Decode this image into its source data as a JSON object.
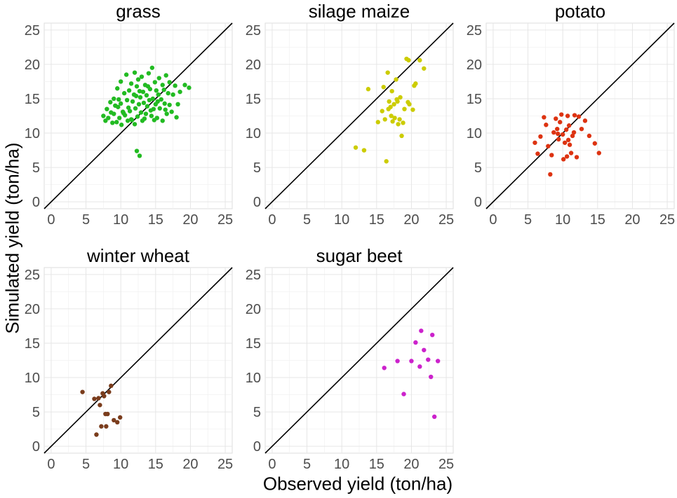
{
  "figure": {
    "xlabel": "Observed yield (ton/ha)",
    "ylabel": "Simulated yield (ton/ha)"
  },
  "chart_data": [
    {
      "type": "scatter",
      "title": "grass",
      "color": "#22bb22",
      "xlim": [
        -1,
        26
      ],
      "ylim": [
        -1,
        26
      ],
      "xticks": [
        0,
        5,
        10,
        15,
        20,
        25
      ],
      "yticks": [
        0,
        5,
        10,
        15,
        20,
        25
      ],
      "identity_line": true,
      "points": [
        [
          7.5,
          12.5
        ],
        [
          7.8,
          11.8
        ],
        [
          8,
          13.5
        ],
        [
          8.2,
          12.2
        ],
        [
          8.5,
          14.5
        ],
        [
          8.6,
          13
        ],
        [
          8.8,
          11.5
        ],
        [
          9,
          15
        ],
        [
          9,
          12.8
        ],
        [
          9.2,
          14
        ],
        [
          9.4,
          11.6
        ],
        [
          9.5,
          16.5
        ],
        [
          9.6,
          13.8
        ],
        [
          9.8,
          12.2
        ],
        [
          10,
          17.5
        ],
        [
          10,
          14.3
        ],
        [
          10.1,
          11.2
        ],
        [
          10.3,
          13.1
        ],
        [
          10.5,
          15.8
        ],
        [
          10.6,
          12.6
        ],
        [
          10.8,
          18.5
        ],
        [
          10.9,
          14.8
        ],
        [
          11,
          11.8
        ],
        [
          11.2,
          16.2
        ],
        [
          11.3,
          13.2
        ],
        [
          11.5,
          17.2
        ],
        [
          11.5,
          12
        ],
        [
          11.7,
          14.6
        ],
        [
          11.9,
          15.6
        ],
        [
          12,
          18.8
        ],
        [
          12,
          11.3
        ],
        [
          12.1,
          13.6
        ],
        [
          12.3,
          16.8
        ],
        [
          12.4,
          12.4
        ],
        [
          12.5,
          17.8
        ],
        [
          12.6,
          14.2
        ],
        [
          12.8,
          15.2
        ],
        [
          12.9,
          13
        ],
        [
          13,
          18.2
        ],
        [
          13.1,
          11.8
        ],
        [
          13.2,
          16
        ],
        [
          13.3,
          14.4
        ],
        [
          13.5,
          17
        ],
        [
          13.6,
          12.8
        ],
        [
          13.7,
          15.5
        ],
        [
          13.8,
          13.9
        ],
        [
          14,
          18.7
        ],
        [
          14.1,
          14.8
        ],
        [
          14.2,
          16.4
        ],
        [
          14.4,
          12.5
        ],
        [
          14.5,
          19.5
        ],
        [
          14.6,
          15
        ],
        [
          14.7,
          13.5
        ],
        [
          14.9,
          17.4
        ],
        [
          15,
          14.2
        ],
        [
          15.1,
          16.2
        ],
        [
          15.2,
          12.2
        ],
        [
          15.4,
          15.6
        ],
        [
          15.5,
          18
        ],
        [
          15.6,
          13.6
        ],
        [
          15.8,
          14.9
        ],
        [
          16,
          17
        ],
        [
          16,
          11.8
        ],
        [
          16.2,
          16.3
        ],
        [
          16.3,
          14.3
        ],
        [
          16.5,
          18.4
        ],
        [
          16.6,
          12.8
        ],
        [
          16.8,
          15.8
        ],
        [
          17,
          14.1
        ],
        [
          17,
          17.4
        ],
        [
          17.3,
          13.1
        ],
        [
          17.5,
          15.6
        ],
        [
          17.8,
          16.9
        ],
        [
          18,
          12.3
        ],
        [
          18.2,
          14.2
        ],
        [
          18.5,
          16
        ],
        [
          19.2,
          17
        ],
        [
          19.8,
          16.6
        ],
        [
          9.7,
          14.9
        ],
        [
          11.1,
          13.7
        ],
        [
          12.2,
          15.4
        ],
        [
          13.4,
          12.1
        ],
        [
          14.3,
          13.3
        ],
        [
          15.3,
          14.6
        ],
        [
          16.4,
          13.4
        ],
        [
          10.4,
          12.9
        ],
        [
          11.6,
          11.9
        ],
        [
          13.9,
          16.8
        ],
        [
          12.7,
          16.1
        ],
        [
          14.8,
          11.9
        ],
        [
          12.3,
          7.4
        ],
        [
          12.7,
          6.7
        ]
      ]
    },
    {
      "type": "scatter",
      "title": "silage maize",
      "color": "#cccc00",
      "xlim": [
        -1,
        26
      ],
      "ylim": [
        -1,
        26
      ],
      "xticks": [
        0,
        5,
        10,
        15,
        20,
        25
      ],
      "yticks": [
        0,
        5,
        10,
        15,
        20,
        25
      ],
      "identity_line": true,
      "points": [
        [
          12,
          7.9
        ],
        [
          13.2,
          7.5
        ],
        [
          13.8,
          16.4
        ],
        [
          15.2,
          11.6
        ],
        [
          15.8,
          13.2
        ],
        [
          16,
          16.7
        ],
        [
          16.2,
          12
        ],
        [
          16.4,
          5.9
        ],
        [
          16.6,
          18.8
        ],
        [
          16.8,
          14.6
        ],
        [
          17,
          13.8
        ],
        [
          17.2,
          16.1
        ],
        [
          17.3,
          11.7
        ],
        [
          17.5,
          14.2
        ],
        [
          17.6,
          12.2
        ],
        [
          17.8,
          17.8
        ],
        [
          18,
          14.6
        ],
        [
          18.1,
          11.3
        ],
        [
          18.3,
          12
        ],
        [
          18.4,
          15.2
        ],
        [
          18.6,
          9.6
        ],
        [
          18.8,
          11.5
        ],
        [
          19,
          13.5
        ],
        [
          19.3,
          20.8
        ],
        [
          19.6,
          20.6
        ],
        [
          19.7,
          14.2
        ],
        [
          20.2,
          13.4
        ],
        [
          20.4,
          16.9
        ],
        [
          20.6,
          17.2
        ],
        [
          21.2,
          20.6
        ],
        [
          21.8,
          19.4
        ],
        [
          16.7,
          13.5
        ],
        [
          17.9,
          14.9
        ],
        [
          17.1,
          12.5
        ],
        [
          19.5,
          14.5
        ]
      ]
    },
    {
      "type": "scatter",
      "title": "potato",
      "color": "#dd3311",
      "xlim": [
        -1,
        26
      ],
      "ylim": [
        -1,
        26
      ],
      "xticks": [
        0,
        5,
        10,
        15,
        20,
        25
      ],
      "yticks": [
        0,
        5,
        10,
        15,
        20,
        25
      ],
      "identity_line": true,
      "points": [
        [
          6,
          8.6
        ],
        [
          6.4,
          7
        ],
        [
          6.8,
          9.5
        ],
        [
          7.3,
          12.3
        ],
        [
          7.6,
          11.2
        ],
        [
          7.9,
          8.1
        ],
        [
          8.2,
          4
        ],
        [
          8.4,
          6.8
        ],
        [
          8.7,
          10.1
        ],
        [
          9,
          12.1
        ],
        [
          9.2,
          10.6
        ],
        [
          9.4,
          9.1
        ],
        [
          9.6,
          11.6
        ],
        [
          9.8,
          12.7
        ],
        [
          10,
          9.8
        ],
        [
          10.1,
          6.2
        ],
        [
          10.3,
          8.6
        ],
        [
          10.5,
          10.5
        ],
        [
          10.7,
          12.5
        ],
        [
          10.9,
          11.1
        ],
        [
          11,
          8.3
        ],
        [
          11.2,
          7.1
        ],
        [
          11.4,
          9.6
        ],
        [
          11.7,
          12.6
        ],
        [
          12,
          6.5
        ],
        [
          12.3,
          12.4
        ],
        [
          12.7,
          10.6
        ],
        [
          13.2,
          11.8
        ],
        [
          13.8,
          9.6
        ],
        [
          14.6,
          8.5
        ],
        [
          15.2,
          7.1
        ],
        [
          10.8,
          9
        ],
        [
          9.3,
          9.9
        ],
        [
          11.6,
          10.1
        ],
        [
          10.6,
          6.6
        ]
      ]
    },
    {
      "type": "scatter",
      "title": "winter wheat",
      "color": "#7a3c1c",
      "xlim": [
        -1,
        26
      ],
      "ylim": [
        -1,
        26
      ],
      "xticks": [
        0,
        5,
        10,
        15,
        20,
        25
      ],
      "yticks": [
        0,
        5,
        10,
        15,
        20,
        25
      ],
      "identity_line": true,
      "points": [
        [
          4.5,
          7.9
        ],
        [
          6.2,
          6.9
        ],
        [
          6.5,
          1.7
        ],
        [
          6.8,
          7
        ],
        [
          7,
          6
        ],
        [
          7.2,
          2.9
        ],
        [
          7.4,
          7.7
        ],
        [
          7.6,
          7.3
        ],
        [
          7.8,
          4.7
        ],
        [
          7.9,
          2.9
        ],
        [
          8.1,
          4.7
        ],
        [
          8.3,
          7.9
        ],
        [
          8.6,
          8.8
        ],
        [
          9,
          3.8
        ],
        [
          9.5,
          3.5
        ],
        [
          9.9,
          4.2
        ]
      ]
    },
    {
      "type": "scatter",
      "title": "sugar beet",
      "color": "#cc22cc",
      "xlim": [
        -1,
        26
      ],
      "ylim": [
        -1,
        26
      ],
      "xticks": [
        0,
        5,
        10,
        15,
        20,
        25
      ],
      "yticks": [
        0,
        5,
        10,
        15,
        20,
        25
      ],
      "identity_line": true,
      "points": [
        [
          16.1,
          11.4
        ],
        [
          18,
          12.4
        ],
        [
          18.9,
          7.6
        ],
        [
          20,
          12.4
        ],
        [
          20.6,
          15.1
        ],
        [
          21.2,
          11.6
        ],
        [
          21.4,
          16.8
        ],
        [
          21.8,
          14
        ],
        [
          22.4,
          12.6
        ],
        [
          22.8,
          10.1
        ],
        [
          23,
          16.2
        ],
        [
          23.3,
          4.3
        ],
        [
          23.8,
          12.4
        ]
      ]
    }
  ]
}
